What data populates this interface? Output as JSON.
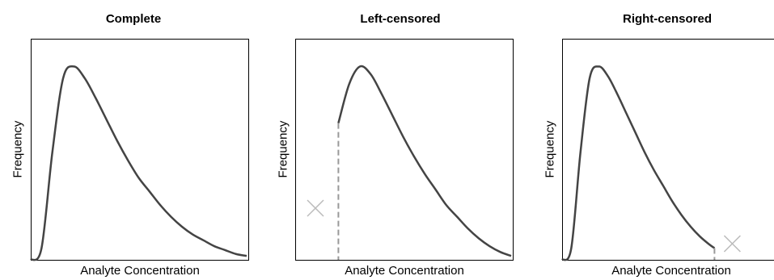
{
  "chart_data": [
    {
      "type": "line",
      "title": "Complete",
      "xlabel": "Analyte Concentration",
      "ylabel": "Frequency",
      "censoring": "none",
      "x": [
        0.0,
        0.05,
        0.1,
        0.15,
        0.2,
        0.25,
        0.3,
        0.35,
        0.4,
        0.45,
        0.5,
        0.55,
        0.6,
        0.65,
        0.7,
        0.75,
        0.8,
        0.85,
        0.9,
        0.95,
        1.0
      ],
      "y": [
        0.0,
        0.06,
        0.55,
        0.93,
        0.99,
        0.93,
        0.83,
        0.72,
        0.61,
        0.51,
        0.42,
        0.35,
        0.28,
        0.22,
        0.17,
        0.13,
        0.1,
        0.07,
        0.05,
        0.03,
        0.02
      ],
      "xlim": [
        0,
        1
      ],
      "ylim": [
        0,
        1
      ]
    },
    {
      "type": "line",
      "title": "Left-censored",
      "xlabel": "Analyte Concentration",
      "ylabel": "Frequency",
      "censoring": "left",
      "censor_point": 0.2,
      "x": [
        0.2,
        0.25,
        0.3,
        0.35,
        0.4,
        0.45,
        0.5,
        0.55,
        0.6,
        0.65,
        0.7,
        0.75,
        0.8,
        0.85,
        0.9,
        0.95,
        1.0
      ],
      "y": [
        0.7,
        0.9,
        0.99,
        0.95,
        0.85,
        0.74,
        0.63,
        0.53,
        0.44,
        0.36,
        0.28,
        0.22,
        0.16,
        0.11,
        0.07,
        0.04,
        0.02
      ],
      "xlim": [
        0,
        1
      ],
      "ylim": [
        0,
        1
      ]
    },
    {
      "type": "line",
      "title": "Right-censored",
      "xlabel": "Analyte Concentration",
      "ylabel": "Frequency",
      "censoring": "right",
      "censor_point": 0.83,
      "x": [
        0.0,
        0.05,
        0.1,
        0.15,
        0.2,
        0.25,
        0.3,
        0.35,
        0.4,
        0.45,
        0.5,
        0.55,
        0.6,
        0.65,
        0.7,
        0.75,
        0.8,
        0.83
      ],
      "y": [
        0.0,
        0.06,
        0.55,
        0.93,
        0.99,
        0.94,
        0.85,
        0.75,
        0.65,
        0.55,
        0.46,
        0.38,
        0.3,
        0.23,
        0.17,
        0.12,
        0.08,
        0.06
      ],
      "xlim": [
        0,
        1
      ],
      "ylim": [
        0,
        1
      ]
    }
  ],
  "colors": {
    "curve": "#444444",
    "censor_line": "#999999",
    "censor_mark": "#bbbbbb"
  }
}
